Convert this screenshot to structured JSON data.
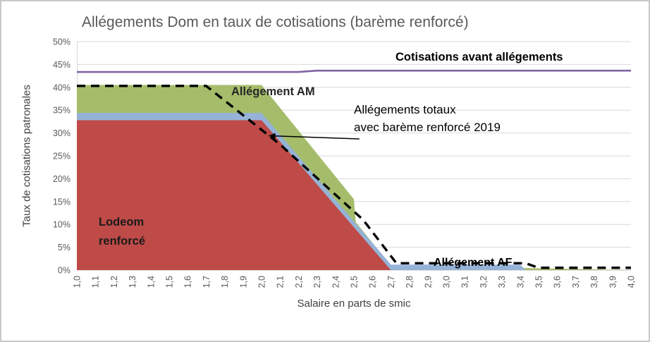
{
  "chart_data": {
    "type": "area",
    "title": "Allégements Dom en taux de cotisations (barème renforcé)",
    "xlabel": "Salaire en parts de smic",
    "ylabel": "Taux de cotisations patronales",
    "xlim": [
      1.0,
      4.0
    ],
    "ylim": [
      0,
      50
    ],
    "grid": "horizontal",
    "x_ticks": [
      "1,0",
      "1,1",
      "1,2",
      "1,3",
      "1,4",
      "1,5",
      "1,6",
      "1,7",
      "1,8",
      "1,9",
      "2,0",
      "2,1",
      "2,2",
      "2,3",
      "2,4",
      "2,5",
      "2,6",
      "2,7",
      "2,8",
      "2,9",
      "3,0",
      "3,1",
      "3,2",
      "3,3",
      "3,4",
      "3,5",
      "3,6",
      "3,7",
      "3,8",
      "3,9",
      "4,0"
    ],
    "y_ticks": [
      "0%",
      "5%",
      "10%",
      "15%",
      "20%",
      "25%",
      "30%",
      "35%",
      "40%",
      "45%",
      "50%"
    ],
    "series": [
      {
        "name": "Allégement AM",
        "type": "area",
        "color": "#A5BD6B",
        "points": [
          [
            1.0,
            40.5
          ],
          [
            2.0,
            40.5
          ],
          [
            2.5,
            15.5
          ],
          [
            2.51,
            10.5
          ],
          [
            2.7,
            1.0
          ],
          [
            4.0,
            0
          ]
        ]
      },
      {
        "name": "Allégement AF",
        "type": "area",
        "color": "#95B3D7",
        "points": [
          [
            1.0,
            34.4
          ],
          [
            2.0,
            34.4
          ],
          [
            2.7,
            1.2
          ],
          [
            3.4,
            1.2
          ],
          [
            3.43,
            0
          ],
          [
            4.0,
            0
          ]
        ]
      },
      {
        "name": "Lodeom renforcé",
        "type": "area",
        "color": "#BE4B48",
        "points": [
          [
            1.0,
            32.8
          ],
          [
            2.0,
            32.8
          ],
          [
            2.7,
            0
          ],
          [
            4.0,
            0
          ]
        ]
      },
      {
        "name": "Cotisations avant allégements",
        "type": "line",
        "color": "#8064A2",
        "width": 2.6,
        "points": [
          [
            1.0,
            43.35
          ],
          [
            2.2,
            43.35
          ],
          [
            2.3,
            43.65
          ],
          [
            4.0,
            43.65
          ]
        ]
      },
      {
        "name": "Allégements totaux avec barème renforcé 2019",
        "type": "dashed-line",
        "color": "#000000",
        "width": 3.4,
        "dash": [
          12,
          8
        ],
        "points": [
          [
            1.0,
            40.3
          ],
          [
            1.7,
            40.3
          ],
          [
            2.1,
            27.5
          ],
          [
            2.55,
            11
          ],
          [
            2.73,
            1.5
          ],
          [
            3.43,
            1.5
          ],
          [
            3.5,
            0.5
          ],
          [
            4.0,
            0.5
          ]
        ]
      }
    ]
  },
  "annotations": {
    "cotisations_avant": "Cotisations avant allégements",
    "allegement_am": "Allégement AM",
    "allegements_totaux": {
      "line1": "Allégements totaux",
      "line2": "avec barème renforcé 2019"
    },
    "lodeom": {
      "line1": "Lodeom",
      "line2": "renforcé"
    },
    "allegement_af": "Allégement AF",
    "arrow": {
      "from": [
        2.53,
        28.7
      ],
      "to": [
        2.04,
        29.4
      ]
    }
  }
}
